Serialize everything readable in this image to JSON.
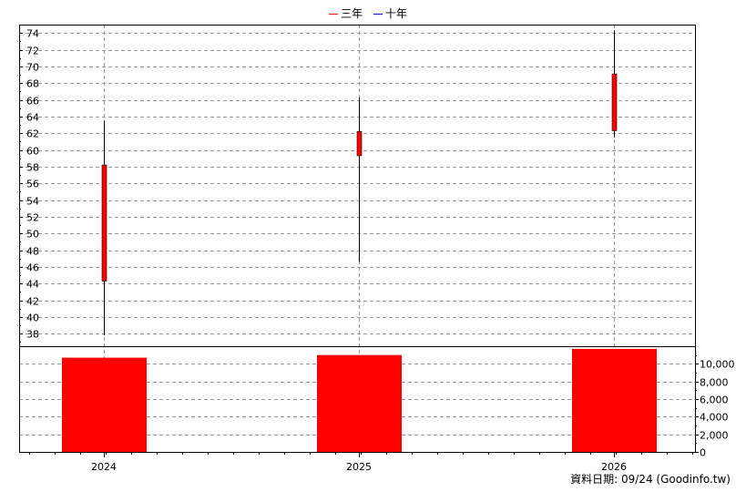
{
  "legend": {
    "items": [
      {
        "label": "三年",
        "color": "#ff0000"
      },
      {
        "label": "十年",
        "color": "#0000ff"
      }
    ]
  },
  "footer": {
    "credit": "資料日期: 09/24  (Goodinfo.tw)"
  },
  "colors": {
    "candle": "#ff0000",
    "volume": "#ff0000",
    "grid": "#999999"
  },
  "chart_data": [
    {
      "type": "candlestick",
      "categories": [
        "2024",
        "2025",
        "2026"
      ],
      "ylim": [
        36.5,
        75
      ],
      "yticks": [
        38,
        40,
        42,
        44,
        46,
        48,
        50,
        52,
        54,
        56,
        58,
        60,
        62,
        64,
        66,
        68,
        70,
        72,
        74
      ],
      "grid": true,
      "series": [
        {
          "x": "2024",
          "open": 44.3,
          "close": 58.2,
          "high": 63.5,
          "low": 37.8
        },
        {
          "x": "2025",
          "open": 59.3,
          "close": 62.2,
          "high": 66.3,
          "low": 46.6
        },
        {
          "x": "2026",
          "open": 62.3,
          "close": 69.1,
          "high": 74.3,
          "low": 61.5
        }
      ]
    },
    {
      "type": "bar",
      "categories": [
        "2024",
        "2025",
        "2026"
      ],
      "values": [
        10700,
        11000,
        11700
      ],
      "ylim": [
        0,
        12000
      ],
      "yticks": [
        0,
        2000,
        4000,
        6000,
        8000,
        10000
      ],
      "ytick_labels": [
        "0",
        "2,000",
        "4,000",
        "6,000",
        "8,000",
        "10,000"
      ],
      "grid": true
    }
  ]
}
